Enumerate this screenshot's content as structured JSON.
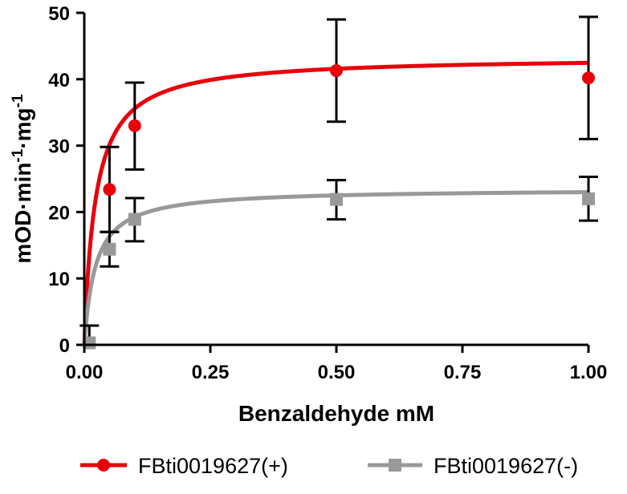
{
  "chart_data": {
    "type": "scatter",
    "title": "",
    "xlabel": "Benzaldehyde mM",
    "ylabel": {
      "base": "mOD·min",
      "sup1": "-1",
      "mid": "·mg",
      "sup2": "-1"
    },
    "xlim": [
      0,
      1.0
    ],
    "ylim": [
      0,
      50
    ],
    "x_ticks": [
      0,
      0.25,
      0.5,
      0.75,
      1.0
    ],
    "x_tick_labels": [
      "0.00",
      "0.25",
      "0.50",
      "0.75",
      "1.00"
    ],
    "y_ticks": [
      0,
      10,
      20,
      30,
      40,
      50
    ],
    "y_tick_labels": [
      "0",
      "10",
      "20",
      "30",
      "40",
      "50"
    ],
    "grid": false,
    "legend_position": "bottom",
    "series": [
      {
        "name": "FBti0019627(+)",
        "color": "#e8000b",
        "marker": "circle",
        "x": [
          0.01,
          0.05,
          0.1,
          0.5,
          1.0
        ],
        "y": [
          0.3,
          23.4,
          33.0,
          41.3,
          40.2
        ],
        "err_low": [
          null,
          17.0,
          26.4,
          33.6,
          31.0
        ],
        "err_high": [
          2.9,
          29.8,
          39.5,
          49.0,
          49.4
        ],
        "fit": {
          "model": "michaelis-menten",
          "vmax": 43.4,
          "km": 0.022
        }
      },
      {
        "name": "FBti0019627(-)",
        "color": "#999999",
        "marker": "square",
        "x": [
          0.01,
          0.05,
          0.1,
          0.5,
          1.0
        ],
        "y": [
          0.3,
          14.4,
          18.9,
          21.9,
          22.0
        ],
        "err_low": [
          null,
          11.8,
          15.6,
          18.9,
          18.7
        ],
        "err_high": [
          null,
          17.0,
          22.1,
          24.8,
          25.3
        ],
        "fit": {
          "model": "michaelis-menten",
          "vmax": 23.5,
          "km": 0.022
        }
      }
    ]
  }
}
